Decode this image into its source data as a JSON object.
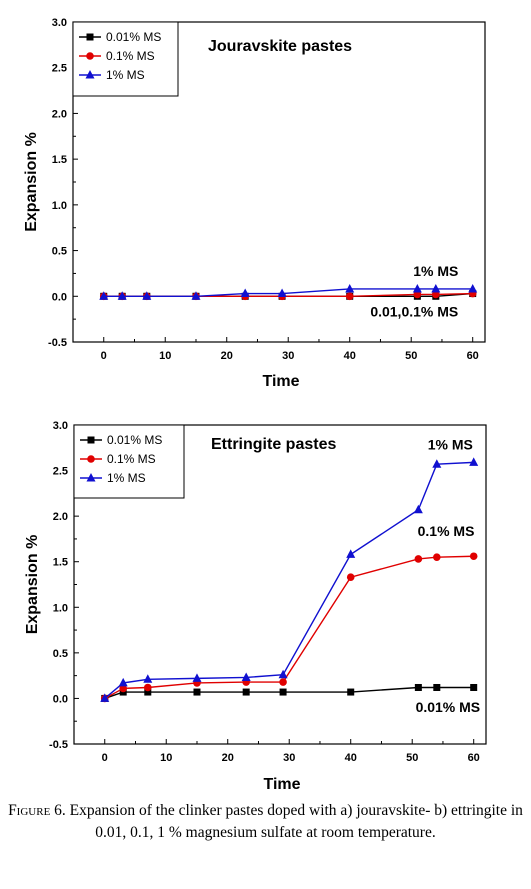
{
  "chart_data": [
    {
      "type": "line",
      "title": "Jouravskite pastes",
      "xlabel": "Time",
      "ylabel": "Expansion %",
      "xlim": [
        -5,
        62
      ],
      "ylim": [
        -0.5,
        3.0
      ],
      "xticks": [
        0,
        10,
        20,
        30,
        40,
        50,
        60
      ],
      "yticks": [
        -0.5,
        0.0,
        0.5,
        1.0,
        1.5,
        2.0,
        2.5,
        3.0
      ],
      "legend_position": "top-left",
      "grid": false,
      "series": [
        {
          "name": "0.01% MS",
          "color": "#000000",
          "marker": "square",
          "x": [
            0,
            3,
            7,
            15,
            23,
            29,
            40,
            51,
            54,
            60
          ],
          "y": [
            0.0,
            0.0,
            0.0,
            0.0,
            0.0,
            0.0,
            0.0,
            0.0,
            0.0,
            0.03
          ]
        },
        {
          "name": "0.1% MS",
          "color": "#e00000",
          "marker": "circle",
          "x": [
            0,
            3,
            7,
            15,
            23,
            29,
            40,
            51,
            54,
            60
          ],
          "y": [
            0.0,
            0.0,
            0.0,
            0.0,
            0.0,
            0.0,
            0.0,
            0.02,
            0.02,
            0.03
          ]
        },
        {
          "name": "1% MS",
          "color": "#1010d0",
          "marker": "triangle",
          "x": [
            0,
            3,
            7,
            15,
            23,
            29,
            40,
            51,
            54,
            60
          ],
          "y": [
            0.0,
            0.0,
            0.0,
            0.0,
            0.03,
            0.03,
            0.08,
            0.08,
            0.08,
            0.08
          ]
        }
      ],
      "annotations": [
        {
          "text": "1% MS",
          "x": 54,
          "y": 0.22
        },
        {
          "text": "0.01,0.1% MS",
          "x": 50.5,
          "y": -0.22
        }
      ]
    },
    {
      "type": "line",
      "title": "Ettringite pastes",
      "xlabel": "Time",
      "ylabel": "Expansion %",
      "xlim": [
        -5,
        62
      ],
      "ylim": [
        -0.5,
        3.0
      ],
      "xticks": [
        0,
        10,
        20,
        30,
        40,
        50,
        60
      ],
      "yticks": [
        -0.5,
        0.0,
        0.5,
        1.0,
        1.5,
        2.0,
        2.5,
        3.0
      ],
      "legend_position": "top-left",
      "grid": false,
      "series": [
        {
          "name": "0.01% MS",
          "color": "#000000",
          "marker": "square",
          "x": [
            0,
            3,
            7,
            15,
            23,
            29,
            40,
            51,
            54,
            60
          ],
          "y": [
            0.0,
            0.07,
            0.07,
            0.07,
            0.07,
            0.07,
            0.07,
            0.12,
            0.12,
            0.12
          ]
        },
        {
          "name": "0.1% MS",
          "color": "#e00000",
          "marker": "circle",
          "x": [
            0,
            3,
            7,
            15,
            23,
            29,
            40,
            51,
            54,
            60
          ],
          "y": [
            0.0,
            0.11,
            0.12,
            0.17,
            0.18,
            0.18,
            1.33,
            1.53,
            1.55,
            1.56
          ]
        },
        {
          "name": "1% MS",
          "color": "#1010d0",
          "marker": "triangle",
          "x": [
            0,
            3,
            7,
            15,
            23,
            29,
            40,
            51,
            54,
            60
          ],
          "y": [
            0.0,
            0.17,
            0.21,
            0.22,
            0.23,
            0.26,
            1.58,
            2.07,
            2.57,
            2.59
          ]
        }
      ],
      "annotations": [
        {
          "text": "1% MS",
          "x": 56.2,
          "y": 2.73
        },
        {
          "text": "0.1% MS",
          "x": 55.5,
          "y": 1.78
        },
        {
          "text": "0.01% MS",
          "x": 55.8,
          "y": -0.15
        }
      ]
    }
  ],
  "caption": {
    "lead": "Figure 6.",
    "text": " Expansion of the clinker pastes doped with a) jouravskite- b) ettringite in 0.01, 0.1, 1 % magnesium sulfate at room temperature."
  }
}
